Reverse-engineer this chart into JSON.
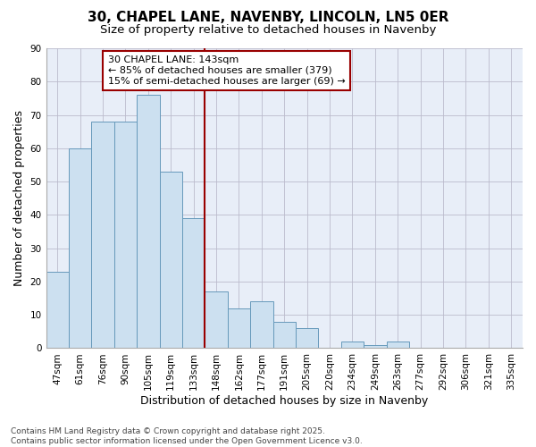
{
  "title": "30, CHAPEL LANE, NAVENBY, LINCOLN, LN5 0ER",
  "subtitle": "Size of property relative to detached houses in Navenby",
  "xlabel": "Distribution of detached houses by size in Navenby",
  "ylabel": "Number of detached properties",
  "categories": [
    "47sqm",
    "61sqm",
    "76sqm",
    "90sqm",
    "105sqm",
    "119sqm",
    "133sqm",
    "148sqm",
    "162sqm",
    "177sqm",
    "191sqm",
    "205sqm",
    "220sqm",
    "234sqm",
    "249sqm",
    "263sqm",
    "277sqm",
    "292sqm",
    "306sqm",
    "321sqm",
    "335sqm"
  ],
  "values": [
    23,
    60,
    68,
    68,
    76,
    53,
    39,
    17,
    12,
    14,
    8,
    6,
    0,
    2,
    1,
    2,
    0,
    0,
    0,
    0,
    0
  ],
  "bar_color": "#cce0f0",
  "bar_edge_color": "#6699bb",
  "annotation_text": "30 CHAPEL LANE: 143sqm\n← 85% of detached houses are smaller (379)\n15% of semi-detached houses are larger (69) →",
  "annotation_box_color": "#ffffff",
  "annotation_box_edge": "#990000",
  "vline_color": "#990000",
  "background_color": "#ffffff",
  "plot_bg_color": "#e8eef8",
  "grid_color": "#bbbbcc",
  "ylim": [
    0,
    90
  ],
  "yticks": [
    0,
    10,
    20,
    30,
    40,
    50,
    60,
    70,
    80,
    90
  ],
  "footnote": "Contains HM Land Registry data © Crown copyright and database right 2025.\nContains public sector information licensed under the Open Government Licence v3.0.",
  "title_fontsize": 11,
  "subtitle_fontsize": 9.5,
  "axis_label_fontsize": 9,
  "tick_fontsize": 7.5,
  "annotation_fontsize": 8,
  "footnote_fontsize": 6.5
}
